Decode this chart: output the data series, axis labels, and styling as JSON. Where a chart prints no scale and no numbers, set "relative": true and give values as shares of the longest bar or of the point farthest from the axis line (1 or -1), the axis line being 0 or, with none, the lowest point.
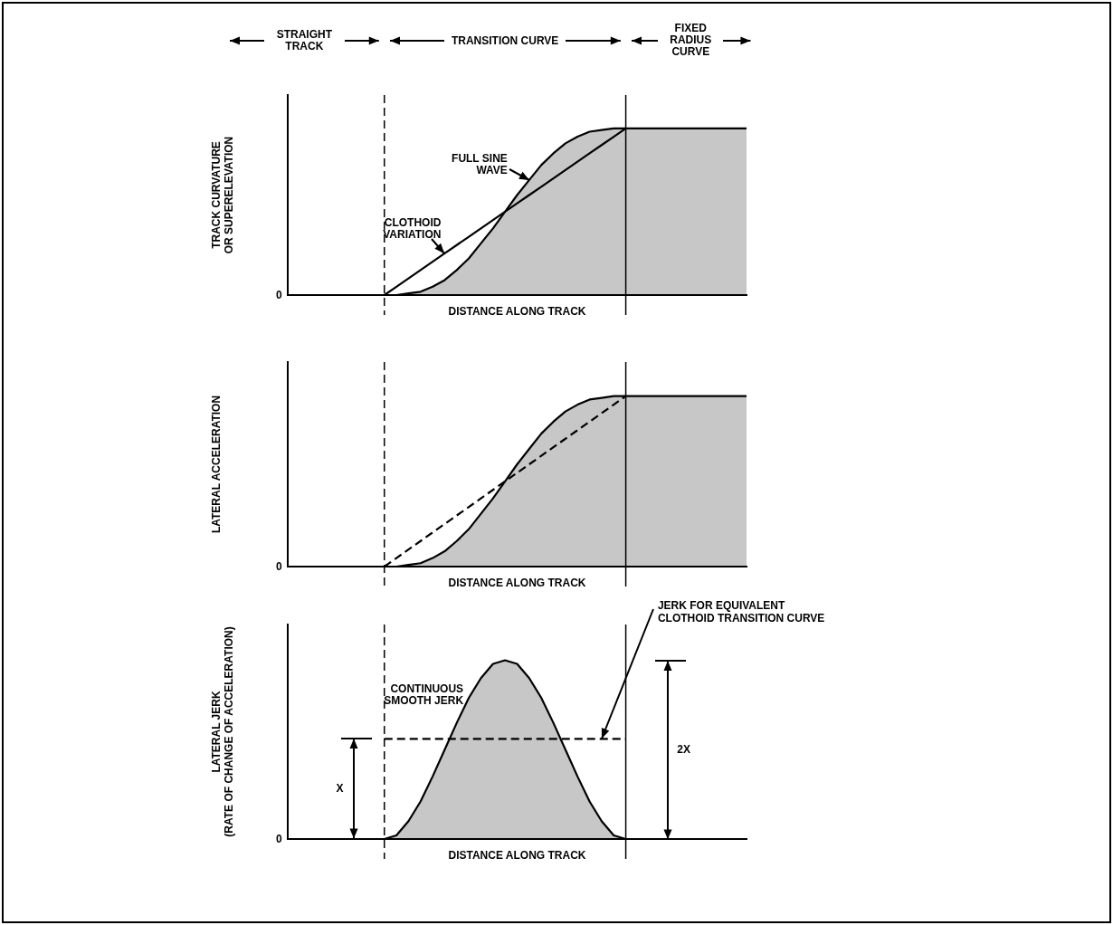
{
  "chart_data": [
    {
      "type": "area",
      "relative": true,
      "ylabel": "TRACK CURVATURE\nOR SUPERELEVATION",
      "xlabel": "DISTANCE ALONG TRACK",
      "legend": false,
      "grid": false,
      "marker": "none",
      "categories": [
        null,
        null,
        null,
        null,
        null,
        null,
        null,
        null,
        null,
        null,
        null,
        null,
        null,
        null,
        null,
        null,
        null,
        null,
        null,
        null,
        null,
        null,
        null,
        null,
        null,
        null,
        null,
        null,
        null,
        null,
        null,
        null,
        null,
        null,
        null,
        null,
        null,
        null,
        null
      ],
      "series": [
        {
          "name": "FULL SINE WAVE",
          "type": "area",
          "color": "#000000",
          "values": [
            0,
            0,
            0,
            0,
            0,
            0,
            0,
            0,
            0,
            0,
            0.01,
            0.02,
            0.05,
            0.09,
            0.15,
            0.22,
            0.31,
            0.4,
            0.5,
            0.6,
            0.69,
            0.78,
            0.85,
            0.91,
            0.95,
            0.98,
            0.99,
            1,
            1,
            1,
            1,
            1,
            1,
            1,
            1,
            1,
            1,
            1,
            1
          ]
        },
        {
          "name": "CLOTHOID VARIATION",
          "type": "line",
          "color": "#000000",
          "values": [
            null,
            null,
            null,
            null,
            null,
            null,
            null,
            null,
            0,
            0.05,
            0.1,
            0.15,
            0.2,
            0.25,
            0.3,
            0.35,
            0.4,
            0.45,
            0.5,
            0.55,
            0.6,
            0.65,
            0.7,
            0.75,
            0.8,
            0.85,
            0.9,
            0.95,
            1,
            null,
            null,
            null,
            null,
            null,
            null,
            null,
            null,
            null,
            null
          ]
        }
      ],
      "annotations": [
        "STRAIGHT TRACK",
        "TRANSITION CURVE",
        "FIXED RADIUS CURVE",
        "0"
      ]
    },
    {
      "type": "area",
      "relative": true,
      "ylabel": "LATERAL ACCELERATION",
      "xlabel": "DISTANCE ALONG TRACK",
      "legend": false,
      "grid": false,
      "marker": "none",
      "categories": [
        null,
        null,
        null,
        null,
        null,
        null,
        null,
        null,
        null,
        null,
        null,
        null,
        null,
        null,
        null,
        null,
        null,
        null,
        null,
        null,
        null,
        null,
        null,
        null,
        null,
        null,
        null,
        null,
        null,
        null,
        null,
        null,
        null,
        null,
        null,
        null,
        null,
        null,
        null
      ],
      "series": [
        {
          "type": "area",
          "color": "#000000",
          "values": [
            0,
            0,
            0,
            0,
            0,
            0,
            0,
            0,
            0,
            0,
            0.01,
            0.02,
            0.05,
            0.09,
            0.15,
            0.22,
            0.31,
            0.4,
            0.5,
            0.6,
            0.69,
            0.78,
            0.85,
            0.91,
            0.95,
            0.98,
            0.99,
            1,
            1,
            1,
            1,
            1,
            1,
            1,
            1,
            1,
            1,
            1,
            1
          ]
        },
        {
          "type": "line",
          "color": "#000000",
          "line_style": "dashed",
          "values": [
            null,
            null,
            null,
            null,
            null,
            null,
            null,
            null,
            0,
            0.05,
            0.1,
            0.15,
            0.2,
            0.25,
            0.3,
            0.35,
            0.4,
            0.45,
            0.5,
            0.55,
            0.6,
            0.65,
            0.7,
            0.75,
            0.8,
            0.85,
            0.9,
            0.95,
            1,
            null,
            null,
            null,
            null,
            null,
            null,
            null,
            null,
            null,
            null
          ]
        }
      ],
      "annotations": [
        "0"
      ]
    },
    {
      "type": "area",
      "relative": true,
      "ylabel": "LATERAL JERK\n(RATE OF CHANGE OF ACCELERATION)",
      "xlabel": "DISTANCE ALONG TRACK",
      "legend": false,
      "grid": false,
      "marker": "none",
      "categories": [
        null,
        null,
        null,
        null,
        null,
        null,
        null,
        null,
        null,
        null,
        null,
        null,
        null,
        null,
        null,
        null,
        null,
        null,
        null,
        null,
        null,
        null,
        null,
        null,
        null,
        null,
        null,
        null,
        null,
        null,
        null,
        null,
        null,
        null,
        null,
        null,
        null,
        null,
        null
      ],
      "series": [
        {
          "name": "CONTINUOUS SMOOTH JERK",
          "type": "area",
          "color": "#000000",
          "values": [
            0,
            0,
            0,
            0,
            0,
            0,
            0,
            0,
            0,
            0.02,
            0.1,
            0.21,
            0.35,
            0.5,
            0.65,
            0.79,
            0.9,
            0.98,
            1,
            0.98,
            0.9,
            0.79,
            0.65,
            0.5,
            0.35,
            0.21,
            0.1,
            0.02,
            0,
            0,
            0,
            0,
            0,
            0,
            0,
            0,
            0,
            0,
            0
          ]
        },
        {
          "name": "JERK FOR EQUIVALENT CLOTHOID TRANSITION CURVE",
          "type": "line",
          "color": "#000000",
          "line_style": "dashed",
          "values": [
            null,
            null,
            null,
            null,
            null,
            null,
            null,
            null,
            0.56,
            0.56,
            0.56,
            0.56,
            0.56,
            0.56,
            0.56,
            0.56,
            0.56,
            0.56,
            0.56,
            0.56,
            0.56,
            0.56,
            0.56,
            0.56,
            0.56,
            0.56,
            0.56,
            0.56,
            0.56,
            null,
            null,
            null,
            null,
            null,
            null,
            null,
            null,
            null,
            null
          ]
        }
      ],
      "annotations": [
        "0",
        "X",
        "2X"
      ]
    }
  ]
}
